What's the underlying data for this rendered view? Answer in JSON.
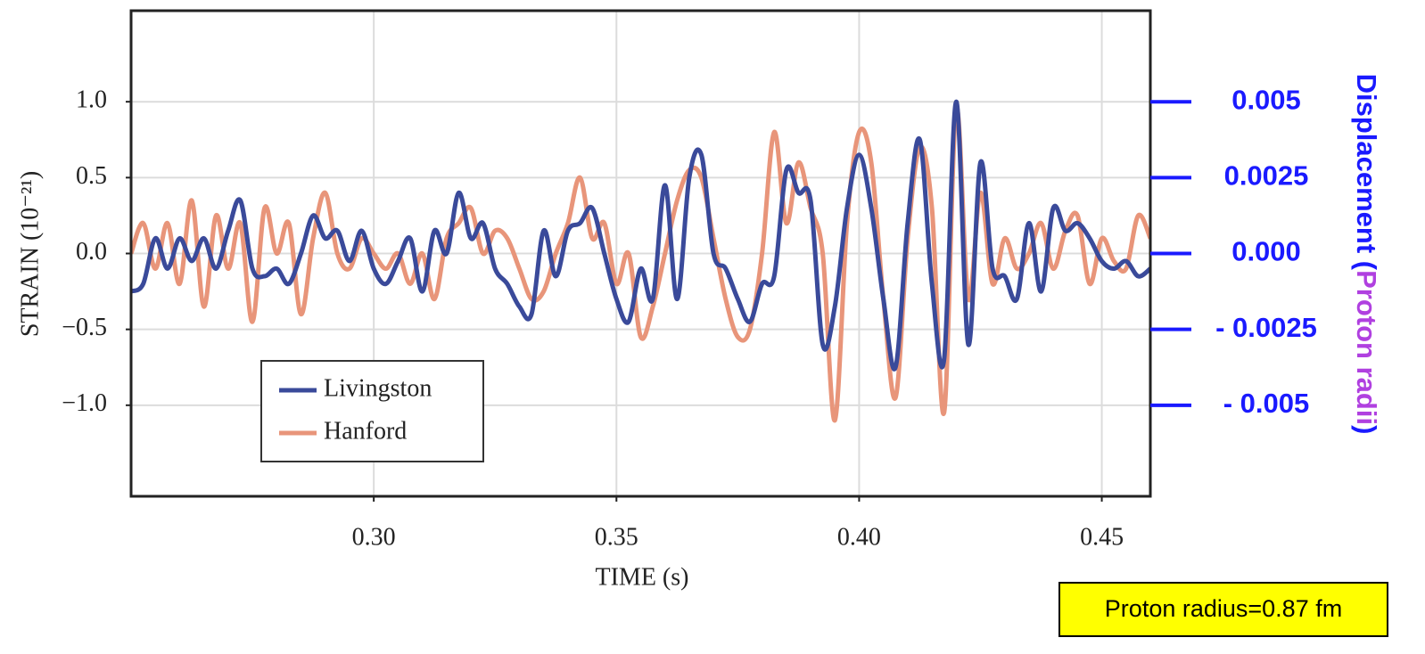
{
  "chart_data": {
    "type": "line",
    "xlabel": "TIME (s)",
    "ylabel": "STRAIN (10⁻²¹)",
    "y2label": [
      "Displacement (",
      "Proton radii",
      ")"
    ],
    "annotation": "Proton radius=0.87 fm",
    "x": [
      0.25,
      0.2525,
      0.255,
      0.2575,
      0.26,
      0.2625,
      0.265,
      0.2675,
      0.27,
      0.2725,
      0.275,
      0.2775,
      0.28,
      0.2825,
      0.285,
      0.2875,
      0.29,
      0.2925,
      0.295,
      0.2975,
      0.3,
      0.3025,
      0.305,
      0.3075,
      0.31,
      0.3125,
      0.315,
      0.3175,
      0.32,
      0.3225,
      0.325,
      0.3275,
      0.33,
      0.3325,
      0.335,
      0.3375,
      0.34,
      0.3425,
      0.345,
      0.3475,
      0.35,
      0.3525,
      0.355,
      0.3575,
      0.36,
      0.3625,
      0.365,
      0.3675,
      0.37,
      0.3725,
      0.375,
      0.3775,
      0.38,
      0.3825,
      0.385,
      0.3875,
      0.39,
      0.3925,
      0.395,
      0.3975,
      0.4,
      0.4025,
      0.405,
      0.4075,
      0.41,
      0.4125,
      0.415,
      0.4175,
      0.42,
      0.4225,
      0.425,
      0.4275,
      0.43,
      0.4325,
      0.435,
      0.4375,
      0.44,
      0.4425,
      0.445,
      0.4475,
      0.45,
      0.4525,
      0.455,
      0.4575,
      0.46
    ],
    "series": [
      {
        "name": "Livingston",
        "color": "#3a4a9a",
        "values": [
          -0.25,
          -0.2,
          0.1,
          -0.1,
          0.1,
          -0.05,
          0.1,
          -0.1,
          0.15,
          0.35,
          -0.1,
          -0.15,
          -0.1,
          -0.2,
          0.0,
          0.25,
          0.1,
          0.15,
          -0.05,
          0.15,
          -0.1,
          -0.2,
          -0.05,
          0.1,
          -0.25,
          0.15,
          0.0,
          0.4,
          0.1,
          0.2,
          -0.1,
          -0.2,
          -0.35,
          -0.4,
          0.15,
          -0.15,
          0.15,
          0.2,
          0.3,
          0.0,
          -0.3,
          -0.45,
          -0.1,
          -0.3,
          0.45,
          -0.3,
          0.5,
          0.65,
          0.0,
          -0.1,
          -0.3,
          -0.45,
          -0.2,
          -0.15,
          0.55,
          0.4,
          0.35,
          -0.6,
          -0.35,
          0.3,
          0.65,
          0.3,
          -0.3,
          -0.75,
          0.2,
          0.75,
          -0.2,
          -0.7,
          1.0,
          -0.6,
          0.6,
          -0.1,
          -0.15,
          -0.3,
          0.2,
          -0.25,
          0.3,
          0.15,
          0.2,
          0.1,
          -0.05,
          -0.1,
          -0.05,
          -0.15,
          -0.1
        ]
      },
      {
        "name": "Hanford",
        "color": "#e8957a",
        "values": [
          0.0,
          0.2,
          -0.1,
          0.2,
          -0.2,
          0.35,
          -0.35,
          0.25,
          -0.1,
          0.2,
          -0.45,
          0.3,
          0.0,
          0.2,
          -0.4,
          0.1,
          0.4,
          0.0,
          -0.1,
          0.1,
          0.0,
          -0.1,
          0.0,
          -0.2,
          0.0,
          -0.3,
          0.1,
          0.2,
          0.3,
          0.0,
          0.15,
          0.1,
          -0.1,
          -0.3,
          -0.25,
          0.0,
          0.2,
          0.5,
          0.1,
          0.2,
          -0.2,
          0.0,
          -0.55,
          -0.35,
          0.0,
          0.35,
          0.55,
          0.5,
          0.1,
          -0.3,
          -0.55,
          -0.5,
          0.0,
          0.8,
          0.2,
          0.6,
          0.3,
          0.0,
          -1.1,
          0.2,
          0.8,
          0.6,
          -0.3,
          -0.95,
          0.1,
          0.7,
          0.3,
          -1.05,
          0.95,
          -0.3,
          0.4,
          -0.2,
          0.1,
          -0.1,
          0.0,
          0.2,
          -0.1,
          0.15,
          0.25,
          -0.2,
          0.1,
          -0.05,
          -0.1,
          0.25,
          0.1
        ]
      }
    ],
    "xlim": [
      0.25,
      0.46
    ],
    "xticks": [
      {
        "value": 0.3,
        "label": "0.30"
      },
      0.35,
      {
        "value": 0.4,
        "label": "0.40"
      },
      0.45
    ],
    "ylim": [
      -1.6,
      1.6
    ],
    "yticks": [
      {
        "value": 1,
        "label": "1.0"
      },
      0.5,
      {
        "value": 0,
        "label": "0.0"
      },
      {
        "value": -0.5,
        "label": "−0.5"
      },
      {
        "value": -1,
        "label": "−1.0"
      }
    ],
    "y2lim": [
      -0.008,
      0.008
    ],
    "y2ticks": [
      0.005,
      0.0025,
      {
        "value": 0,
        "label": "0.000"
      },
      {
        "value": -0.0025,
        "label": "- 0.0025"
      },
      {
        "value": -0.005,
        "label": "- 0.005"
      }
    ],
    "grid": true,
    "legend": "lower left"
  }
}
